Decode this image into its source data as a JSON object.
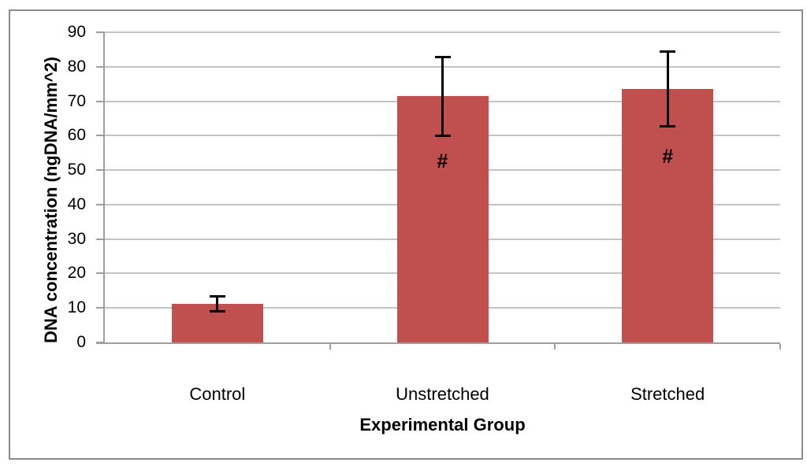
{
  "chart_data": {
    "type": "bar",
    "title": "",
    "categories": [
      "Control",
      "Unstretched",
      "Stretched"
    ],
    "values": [
      11.2,
      71.4,
      73.6
    ],
    "errors": [
      2.3,
      11.6,
      11.0
    ],
    "annotations": [
      {
        "category_index": 1,
        "text": "#",
        "y": 52.5
      },
      {
        "category_index": 2,
        "text": "#",
        "y": 54.0
      }
    ],
    "xlabel": "Experimental Group",
    "ylabel": "DNA concentration (ngDNA/mm^2)",
    "ylim": [
      0,
      90
    ],
    "yticks": [
      0,
      10,
      20,
      30,
      40,
      50,
      60,
      70,
      80,
      90
    ],
    "grid": true,
    "legend": false,
    "colors": {
      "bar": "#c0504d",
      "error_bar": "#000000",
      "gridline": "#c4c4c4",
      "axis_line": "#9e9e9e",
      "frame_border": "#8a8a8a",
      "text": "#000000",
      "background": "#ffffff"
    }
  }
}
